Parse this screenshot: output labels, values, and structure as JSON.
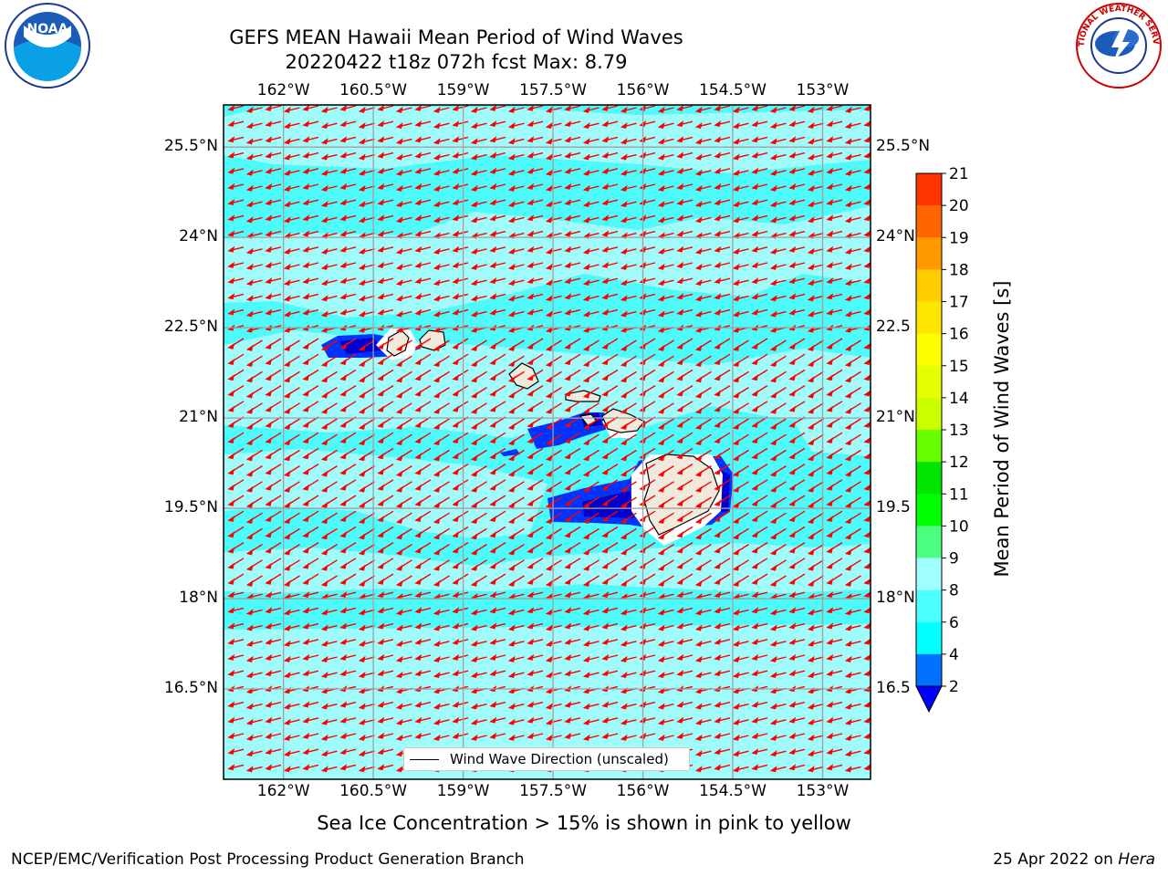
{
  "header": {
    "title_line1": "GEFS MEAN Hawaii Mean Period of Wind Waves",
    "title_line2": "20220422 t18z 072h fcst   Max: 8.79"
  },
  "logos": {
    "left": {
      "text": "NOAA",
      "icon": "noaa-logo"
    },
    "right": {
      "text": "NATIONAL WEATHER SERVICE",
      "icon": "nws-logo"
    }
  },
  "map": {
    "lon_ticks": [
      "162°W",
      "160.5°W",
      "159°W",
      "157.5°W",
      "156°W",
      "154.5°W",
      "153°W"
    ],
    "lon_values": [
      -162,
      -160.5,
      -159,
      -157.5,
      -156,
      -154.5,
      -153
    ],
    "lat_ticks_left": [
      "25.5°N",
      "24°N",
      "22.5°N",
      "21°N",
      "19.5°N",
      "18°N",
      "16.5°N"
    ],
    "lat_ticks_right": [
      "25.5°N",
      "24°N",
      "22.5",
      "21°N",
      "19.5",
      "18°N",
      "16.5"
    ],
    "lat_values": [
      25.5,
      24,
      22.5,
      21,
      19.5,
      18,
      16.5
    ],
    "lon_range": [
      -163,
      -152.2
    ],
    "lat_range": [
      15.0,
      26.2
    ],
    "grid": true,
    "colors": {
      "ocean_main": "#4dfbfb",
      "ocean_light": "#a0fbfb",
      "low": "#0033ff",
      "lowest": "#0000cc",
      "land": "#efeadb",
      "arrow": "#ff0000"
    },
    "legend": {
      "label": "Wind Wave Direction (unscaled)",
      "placement": "bottom-center"
    }
  },
  "colorbar": {
    "label": "Mean Period of Wind Waves [s]",
    "ticks": [
      "2",
      "4",
      "6",
      "8",
      "9",
      "10",
      "11",
      "12",
      "13",
      "14",
      "15",
      "16",
      "17",
      "18",
      "19",
      "20",
      "21"
    ],
    "colors": [
      "#0070ff",
      "#00ffff",
      "#4dffff",
      "#a0ffff",
      "#4dff80",
      "#00ff00",
      "#00e600",
      "#66ff00",
      "#ccff00",
      "#e6ff00",
      "#ffff00",
      "#ffe600",
      "#ffcc00",
      "#ff9900",
      "#ff6600",
      "#ff3300",
      "#ff0000"
    ],
    "under_color": "#0000ff"
  },
  "caption": "Sea Ice Concentration > 15% is shown in pink to yellow",
  "footer": {
    "left": "NCEP/EMC/Verification Post Processing Product Generation Branch",
    "right_prefix": "25 Apr 2022 on ",
    "right_host": "Hera"
  }
}
